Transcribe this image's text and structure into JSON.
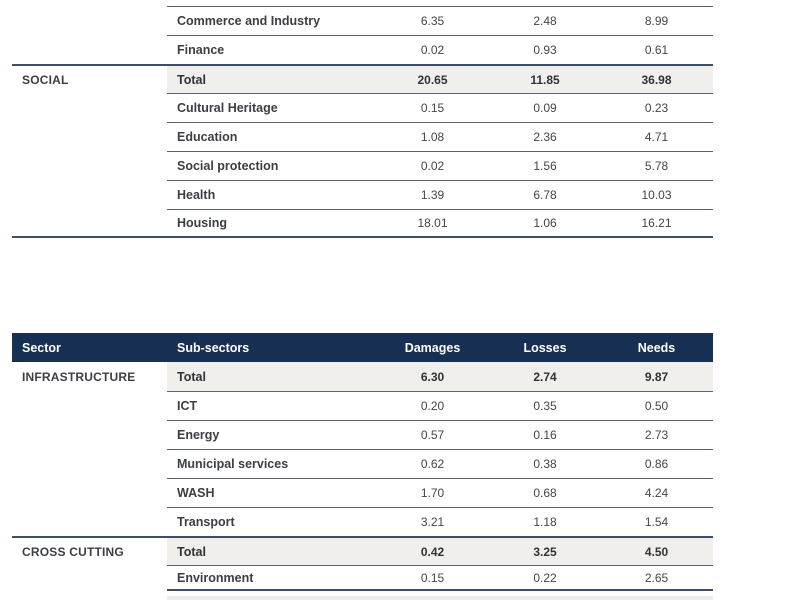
{
  "colors": {
    "header_bg": "#182f54",
    "header_text": "#ffffff",
    "total_row_bg": "#f0efec",
    "section_line": "#3e4e64",
    "row_line": "#5a6472",
    "label_text": "#3b3e44",
    "number_text": "#454545"
  },
  "table_top": {
    "rows": [
      {
        "sub": "Commerce and Industry",
        "damages": "6.35",
        "losses": "2.48",
        "needs": "8.99"
      },
      {
        "sub": "Finance",
        "damages": "0.02",
        "losses": "0.93",
        "needs": "0.61"
      },
      {
        "sector": "SOCIAL",
        "sub": "Total",
        "damages": "20.65",
        "losses": "11.85",
        "needs": "36.98",
        "is_total": true
      },
      {
        "sub": "Cultural Heritage",
        "damages": "0.15",
        "losses": "0.09",
        "needs": "0.23"
      },
      {
        "sub": "Education",
        "damages": "1.08",
        "losses": "2.36",
        "needs": "4.71"
      },
      {
        "sub": "Social protection",
        "damages": "0.02",
        "losses": "1.56",
        "needs": "5.78"
      },
      {
        "sub": "Health",
        "damages": "1.39",
        "losses": "6.78",
        "needs": "10.03"
      },
      {
        "sub": "Housing",
        "damages": "18.01",
        "losses": "1.06",
        "needs": "16.21"
      }
    ]
  },
  "table_bottom": {
    "header": {
      "sector": "Sector",
      "sub_sectors": "Sub-sectors",
      "damages": "Damages",
      "losses": "Losses",
      "needs": "Needs"
    },
    "rows": [
      {
        "sector": "INFRASTRUCTURE",
        "sub": "Total",
        "damages": "6.30",
        "losses": "2.74",
        "needs": "9.87",
        "is_total": true
      },
      {
        "sub": "ICT",
        "damages": "0.20",
        "losses": "0.35",
        "needs": "0.50"
      },
      {
        "sub": "Energy",
        "damages": "0.57",
        "losses": "0.16",
        "needs": "2.73"
      },
      {
        "sub": "Municipal services",
        "damages": "0.62",
        "losses": "0.38",
        "needs": "0.86"
      },
      {
        "sub": "WASH",
        "damages": "1.70",
        "losses": "0.68",
        "needs": "4.24"
      },
      {
        "sub": "Transport",
        "damages": "3.21",
        "losses": "1.18",
        "needs": "1.54"
      },
      {
        "sector": "CROSS CUTTING",
        "sub": "Total",
        "damages": "0.42",
        "losses": "3.25",
        "needs": "4.50",
        "is_total": true
      },
      {
        "sub": "Environment",
        "damages": "0.15",
        "losses": "0.22",
        "needs": "2.65"
      }
    ]
  }
}
